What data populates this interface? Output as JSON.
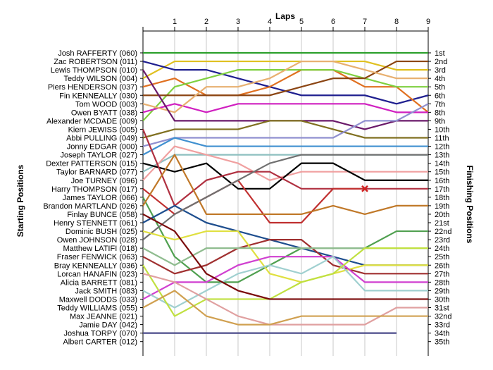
{
  "chart_data": {
    "type": "line",
    "title": "",
    "xlabel": "Laps",
    "ylabel_left": "Starting Positions",
    "ylabel_right": "Finishing Positions",
    "x_ticks": [
      1,
      2,
      3,
      4,
      5,
      6,
      7,
      8,
      9
    ],
    "xlim": [
      0,
      9
    ],
    "ylim": [
      1,
      35
    ],
    "y_inverted": true,
    "grid": "vertical",
    "legend": "none",
    "starting_labels": [
      "Josh RAFFERTY (060)",
      "Zac ROBERTSON (011)",
      "Lewis THOMPSON (010)",
      "Teddy WILSON (004)",
      "Piers HENDERSON (037)",
      "Fin KENNEALLY (030)",
      "Tom WOOD (003)",
      "Owen BYATT (038)",
      "Alexander MCDADE (009)",
      "Kiern JEWISS (005)",
      "Abbi PULLING (049)",
      "Jonny EDGAR (000)",
      "Joseph TAYLOR (027)",
      "Dexter PATTERSON (015)",
      "Taylor BARNARD (077)",
      "Joe TURNEY (096)",
      "Harry THOMPSON (017)",
      "James TAYLOR (066)",
      "Brandon MARTLAND (026)",
      "Finlay BUNCE (058)",
      "Henry STENNETT (061)",
      "Dominic BUSH (025)",
      "Owen JOHNSON (028)",
      "Matthew LATIFI (018)",
      "Fraser FENWICK (063)",
      "Bray KENNEALLY (036)",
      "Lorcan HANAFIN (023)",
      "Alicia BARRETT (081)",
      "Jack SMITH (083)",
      "Maxwell DODDS (033)",
      "Teddy WILLIAMS (055)",
      "Max JEANNE (021)",
      "Jamie DAY (042)",
      "Joshua TORPY (070)",
      "Albert CARTER (012)"
    ],
    "finishing_labels": [
      "1st",
      "2nd",
      "3rd",
      "4th",
      "5th",
      "6th",
      "7th",
      "8th",
      "9th",
      "10th",
      "11th",
      "12th",
      "13th",
      "14th",
      "15th",
      "16th",
      "17th",
      "18th",
      "19th",
      "20th",
      "21st",
      "22nd",
      "23rd",
      "24th",
      "25th",
      "26th",
      "27th",
      "28th",
      "29th",
      "30th",
      "31st",
      "32nd",
      "33rd",
      "34th",
      "35th"
    ],
    "series": [
      {
        "color": "#2ca02c",
        "values": [
          1,
          1,
          1,
          1,
          1,
          1,
          1,
          1,
          1,
          1
        ]
      },
      {
        "color": "#e0c020",
        "values": [
          4,
          2,
          2,
          2,
          2,
          2,
          2,
          2,
          3,
          3
        ]
      },
      {
        "color": "#1f1f8f",
        "values": [
          2,
          3,
          3,
          4,
          5,
          6,
          6,
          6,
          7,
          6
        ]
      },
      {
        "color": "#e07020",
        "values": [
          5,
          4,
          6,
          6,
          5,
          3,
          3,
          5,
          5,
          8
        ]
      },
      {
        "color": "#7fd040",
        "values": [
          9,
          5,
          4,
          3,
          3,
          3,
          3,
          4,
          5,
          5
        ]
      },
      {
        "color": "#8b4513",
        "values": [
          6,
          6,
          6,
          6,
          6,
          5,
          4,
          4,
          2,
          2
        ]
      },
      {
        "color": "#d020c0",
        "values": [
          8,
          7,
          8,
          7,
          7,
          7,
          7,
          7,
          8,
          8
        ]
      },
      {
        "color": "#e8b070",
        "values": [
          7,
          8,
          5,
          5,
          4,
          2,
          2,
          3,
          4,
          4
        ]
      },
      {
        "color": "#6a1a6a",
        "values": [
          3,
          9,
          9,
          9,
          9,
          9,
          9,
          10,
          9,
          9
        ]
      },
      {
        "color": "#807020",
        "values": [
          11,
          10,
          10,
          10,
          9,
          9,
          10,
          11,
          11,
          11
        ]
      },
      {
        "color": "#9090d0",
        "values": [
          12,
          11,
          11,
          11,
          11,
          11,
          11,
          9,
          9,
          7
        ]
      },
      {
        "color": "#4090d0",
        "values": [
          13,
          11,
          12,
          12,
          12,
          12,
          12,
          12,
          12,
          12
        ]
      },
      {
        "color": "#8ec0c0",
        "values": [
          15,
          13,
          13,
          13,
          13,
          13,
          13,
          13,
          13,
          13
        ]
      },
      {
        "color": "#f0a0a0",
        "values": [
          16,
          12,
          13,
          14,
          16,
          15,
          15,
          15,
          15,
          15
        ]
      },
      {
        "color": "#000000",
        "values": [
          14,
          15,
          14,
          17,
          17,
          14,
          14,
          16,
          16,
          16
        ]
      },
      {
        "color": "#b03040",
        "values": [
          10,
          19,
          16,
          15,
          15,
          17,
          17,
          17,
          17,
          17
        ]
      },
      {
        "color": "#c03030",
        "values": [
          17,
          20,
          18,
          16,
          21,
          21,
          17,
          17
        ]
      },
      {
        "color": "#50a050",
        "values": [
          18,
          25,
          28,
          28,
          26,
          24,
          24,
          24,
          22,
          22
        ]
      },
      {
        "color": "#1e4e8e",
        "values": [
          21,
          19,
          21,
          22,
          23,
          24,
          25,
          26,
          26,
          26
        ]
      },
      {
        "color": "#a03030",
        "values": [
          25,
          27,
          26,
          24,
          23,
          23,
          26,
          27,
          27,
          27
        ]
      },
      {
        "color": "#707070",
        "values": [
          23,
          20,
          18,
          16,
          14,
          13,
          13,
          13,
          13,
          13
        ]
      },
      {
        "color": "#c07828",
        "values": [
          19,
          13,
          20,
          20,
          20,
          20,
          19,
          20,
          19,
          19
        ]
      },
      {
        "color": "#e0e040",
        "values": [
          22,
          23,
          22,
          22,
          27,
          28,
          27,
          26,
          26,
          26
        ]
      },
      {
        "color": "#8fbc8f",
        "values": [
          24,
          26,
          24,
          24,
          24,
          24,
          24,
          24,
          24,
          24
        ]
      },
      {
        "color": "#d040d0",
        "values": [
          30,
          28,
          28,
          26,
          25,
          25,
          25,
          28,
          28,
          28
        ]
      },
      {
        "color": "#a0d0d0",
        "values": [
          29,
          31,
          29,
          27,
          26,
          27,
          25,
          29,
          29,
          29
        ]
      },
      {
        "color": "#c0e040",
        "values": [
          26,
          32,
          30,
          30,
          30,
          28,
          27,
          24,
          24,
          24
        ]
      },
      {
        "color": "#7a0a0a",
        "values": [
          20,
          22,
          27,
          29,
          30,
          30,
          30,
          30,
          30,
          30
        ]
      },
      {
        "color": "#e0a0a0",
        "values": [
          27,
          28,
          30,
          32,
          33,
          33,
          33,
          33,
          31,
          31
        ]
      },
      {
        "color": "#d0a050",
        "values": [
          31,
          29,
          32,
          33,
          33,
          32,
          32,
          32,
          32,
          32
        ]
      },
      {
        "color": "#4a4a8a",
        "values": [
          34,
          34,
          34,
          34,
          34,
          34,
          34,
          34,
          34
        ]
      }
    ],
    "annotation": {
      "mark": "x",
      "color": "#d02020",
      "x": 7,
      "y": 17
    }
  }
}
